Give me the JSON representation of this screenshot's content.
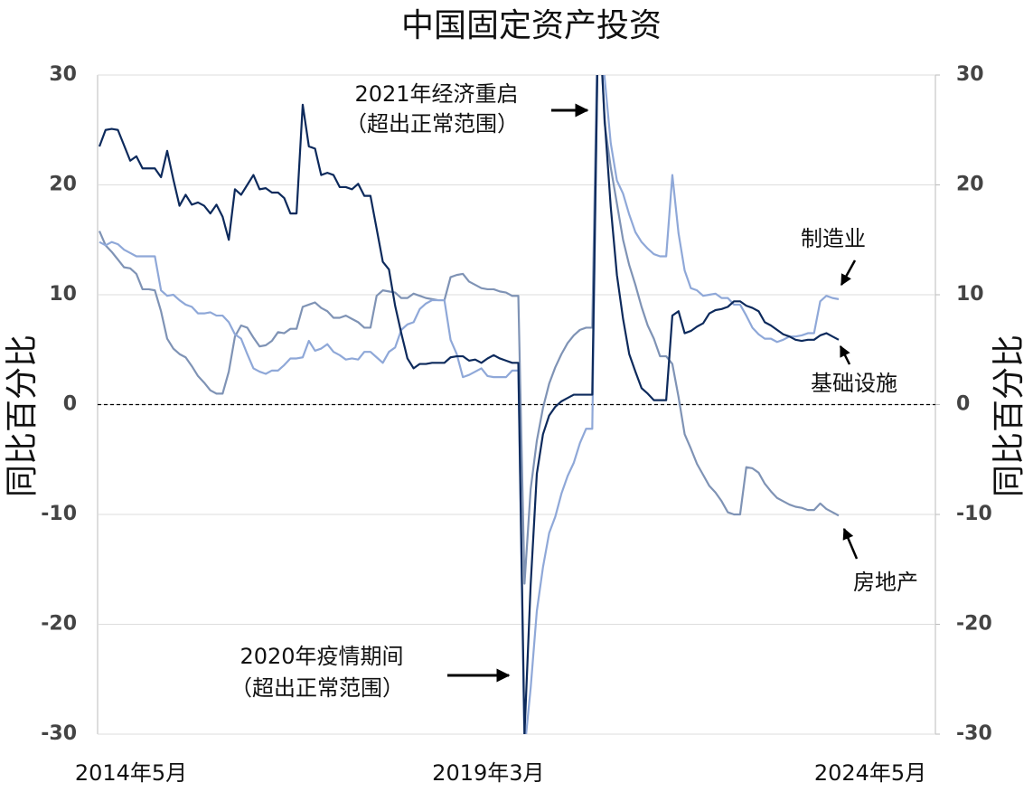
{
  "chart_data": {
    "type": "line",
    "title": "中国固定资产投资",
    "y_label": "同比百分比",
    "y2_label": "同比百分比",
    "categories": [
      "2014年5月",
      null,
      null,
      null,
      null,
      null,
      null,
      null,
      null,
      null,
      null,
      null,
      null,
      null,
      null,
      null,
      null,
      null,
      null,
      null,
      null,
      null,
      null,
      null,
      null,
      null,
      null,
      null,
      null,
      null,
      null,
      null,
      null,
      null,
      null,
      null,
      null,
      null,
      null,
      null,
      null,
      null,
      null,
      null,
      null,
      null,
      null,
      null,
      null,
      null,
      null,
      null,
      null,
      null,
      null,
      null,
      null,
      null,
      "2019年3月",
      null,
      null,
      null,
      null,
      null,
      null,
      null,
      null,
      null,
      null,
      null,
      null,
      null,
      null,
      null,
      null,
      null,
      null,
      null,
      null,
      null,
      null,
      null,
      null,
      null,
      null,
      null,
      null,
      null,
      null,
      null,
      null,
      null,
      null,
      null,
      null,
      null,
      null,
      null,
      null,
      null,
      null,
      null,
      null,
      null,
      null,
      null,
      null,
      null,
      null,
      null,
      null,
      null,
      null,
      null,
      null,
      null,
      null,
      null,
      null,
      null,
      "2024年5月"
    ],
    "series": [
      {
        "name": "基础设施",
        "color": "#0d2a5c",
        "values": [
          23.5,
          25,
          25.1,
          25,
          23.6,
          22.2,
          22.6,
          21.5,
          21.5,
          21.5,
          20.7,
          23.1,
          20.5,
          18.1,
          19.1,
          18.2,
          18.4,
          18.1,
          17.4,
          18.2,
          17.1,
          15,
          19.6,
          19.1,
          20,
          20.9,
          19.6,
          19.7,
          19.3,
          19.3,
          18.8,
          17.4,
          17.4,
          27.3,
          23.5,
          23.3,
          20.9,
          21.1,
          20.9,
          19.8,
          19.8,
          19.6,
          20.1,
          19,
          19,
          16,
          13,
          12.3,
          9,
          6.5,
          4.2,
          3.3,
          3.7,
          3.7,
          3.8,
          3.8,
          3.8,
          4.3,
          4.4,
          4.4,
          4,
          4.1,
          3.8,
          4.2,
          4.5,
          4.2,
          4,
          3.8,
          3.8,
          -30,
          -16.4,
          -6.3,
          -2.7,
          -1,
          -0.2,
          0.3,
          0.6,
          0.9,
          0.9,
          0.9,
          0.9,
          36.6,
          26,
          18,
          11.8,
          7.8,
          4.6,
          3,
          1.5,
          1,
          0.4,
          0.4,
          0.4,
          8.1,
          8.5,
          6.5,
          6.7,
          7.1,
          7.4,
          8.3,
          8.6,
          8.7,
          8.9,
          9.4,
          9.4,
          9,
          8.8,
          8.5,
          7.5,
          7.2,
          6.8,
          6.4,
          6.2,
          5.9,
          5.8,
          5.9,
          5.9,
          6.3,
          6.5,
          6.2,
          5.9
        ]
      },
      {
        "name": "制造业",
        "color": "#8fa8d8",
        "values": [
          14.8,
          14.5,
          14.8,
          14.6,
          14.1,
          13.8,
          13.5,
          13.5,
          13.5,
          13.5,
          10.4,
          9.9,
          10,
          9.5,
          9.1,
          8.9,
          8.3,
          8.3,
          8.4,
          8.1,
          8.1,
          7.5,
          6.4,
          6,
          4.6,
          3.3,
          3,
          2.8,
          3.1,
          3.1,
          3.6,
          4.2,
          4.2,
          4.3,
          5.8,
          4.9,
          5.1,
          5.5,
          4.8,
          4.5,
          4.1,
          4.2,
          4.1,
          4.8,
          4.8,
          4.3,
          3.8,
          4.8,
          5.2,
          6.8,
          7.3,
          7.5,
          8.7,
          9.2,
          9.5,
          9.5,
          9.5,
          5.9,
          4.6,
          2.5,
          2.7,
          3,
          3.3,
          2.6,
          2.5,
          2.5,
          2.5,
          3.1,
          3.1,
          -31.5,
          -25.8,
          -18.8,
          -14.8,
          -11.7,
          -10.2,
          -8.1,
          -6.5,
          -5.3,
          -3.5,
          -2.2,
          -2.2,
          37.3,
          29.8,
          23.8,
          20.4,
          19.2,
          17.3,
          15.7,
          14.8,
          14.2,
          13.7,
          13.5,
          13.5,
          20.9,
          15.6,
          12.2,
          10.6,
          10.4,
          9.9,
          10,
          10.1,
          9.7,
          9.7,
          9.1,
          9.1,
          8.1,
          7,
          6.4,
          6,
          6,
          5.7,
          5.9,
          6.2,
          6.2,
          6.3,
          6.5,
          6.5,
          9.4,
          9.9,
          9.7,
          9.6
        ]
      },
      {
        "name": "房地产",
        "color": "#7f93b5",
        "values": [
          15.8,
          14.5,
          13.9,
          13.2,
          12.5,
          12.4,
          11.9,
          10.5,
          10.5,
          10.4,
          8.5,
          6,
          5.1,
          4.6,
          4.3,
          3.5,
          2.6,
          2,
          1.3,
          1,
          1,
          3,
          6.2,
          7.2,
          7,
          6.1,
          5.3,
          5.4,
          5.8,
          6.6,
          6.5,
          6.9,
          6.9,
          8.9,
          9.1,
          9.3,
          8.8,
          8.5,
          7.9,
          7.9,
          8.1,
          7.8,
          7.5,
          7,
          7,
          9.9,
          10.4,
          10.3,
          10.2,
          9.7,
          9.7,
          10.1,
          9.9,
          9.7,
          9.6,
          9.5,
          9.5,
          11.6,
          11.8,
          11.9,
          11.2,
          10.9,
          10.6,
          10.5,
          10.5,
          10.3,
          10.2,
          9.9,
          9.9,
          -16.3,
          -7.7,
          -3.3,
          -0.3,
          1.9,
          3.4,
          4.6,
          5.6,
          6.3,
          6.8,
          7,
          7,
          38.3,
          25.6,
          21.6,
          18.3,
          15,
          12.7,
          10.9,
          8.9,
          7.2,
          6,
          4.4,
          4.4,
          3.7,
          0.7,
          -2.7,
          -4,
          -5.4,
          -6.4,
          -7.4,
          -8,
          -8.8,
          -9.8,
          -10,
          -10,
          -5.7,
          -5.8,
          -6.2,
          -7.2,
          -7.9,
          -8.5,
          -8.8,
          -9.1,
          -9.3,
          -9.4,
          -9.6,
          -9.6,
          -9,
          -9.5,
          -9.8,
          -10.1
        ]
      }
    ],
    "ylim": [
      -30,
      30
    ],
    "yticks": [
      -30,
      -20,
      -10,
      0,
      10,
      20,
      30
    ],
    "y2lim": [
      -30,
      30
    ],
    "y2ticks": [
      -30,
      -20,
      -10,
      0,
      10,
      20,
      30
    ],
    "hline": 0,
    "grid": true,
    "annotations": [
      {
        "text": "2021年经济重启"
      },
      {
        "text": "（超出正常范围）"
      },
      {
        "text": "2020年疫情期间"
      },
      {
        "text": "（超出正常范围）"
      }
    ]
  }
}
